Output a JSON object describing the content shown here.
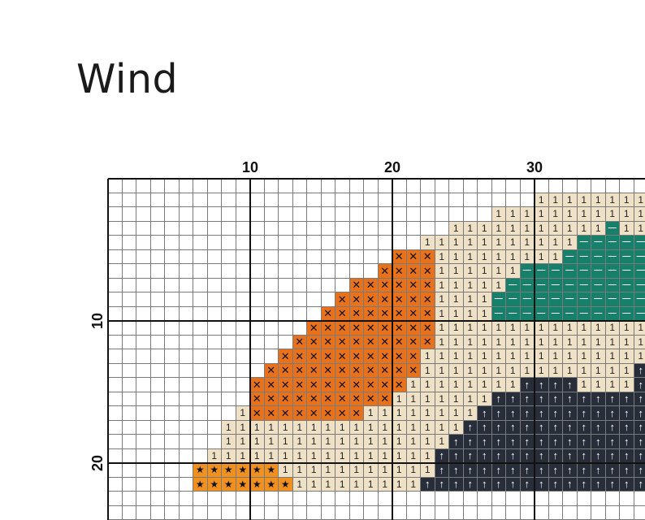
{
  "title": "Wind",
  "column_labels": [
    {
      "value": "10",
      "col": 10
    },
    {
      "value": "20",
      "col": 20
    },
    {
      "value": "30",
      "col": 30
    }
  ],
  "row_labels": [
    {
      "value": "10",
      "row": 10
    },
    {
      "value": "20",
      "row": 20
    }
  ],
  "symbols": {
    "T": {
      "glyph": "1",
      "bg": "#EFE1C6",
      "fg": "#222222",
      "name": "tan-1"
    },
    "O": {
      "glyph": "✕",
      "bg": "#E8711C",
      "fg": "#111111",
      "name": "orange-x"
    },
    "G": {
      "glyph": "—",
      "bg": "#16806B",
      "fg": "#FFFFFF",
      "name": "teal-dash"
    },
    "D": {
      "glyph": "↑",
      "bg": "#272E39",
      "fg": "#FFFFFF",
      "name": "dark-arrow"
    },
    "S": {
      "glyph": "★",
      "bg": "#F0901E",
      "fg": "#111111",
      "name": "orange-star"
    }
  },
  "pattern": [
    "......................................",
    "..............................TTTTTTTT",
    "...........................TTTTTTTTTTT",
    "........................TTTTTTTTTTTGTT",
    "......................TTTTTTTTTTTGGGGG",
    "....................OOOTTTTTTTTTGGGGGG",
    "...................OOOOTTTTTTGGGGGGGGG",
    ".................OOOOOOTTTTTGGGGGGGGGG",
    "................OOOOOOOTTTTGGGGGGGGGGG",
    "...............OOOOOOOOTTTTGGGGGGGGGGG",
    "..............OOOOOOOOOTTTTTTTTTTTTTTT",
    ".............OOOOOOOOOOTTTTTTTTTTTTTTT",
    "............OOOOOOOOOOTTTTTTTTTTTTTTTT",
    "...........OOOOOOOOOOOTTTTTTTTTTTTTTTD",
    "..........OOOOOOOOOOOTTTTTTTTDDDDTTTTD",
    "..........OOOOOOOOOOTTTTTTTDDDDDDDDDDD",
    ".........TOOOOOOOOTTTTTTTTDDDDDDDDDDDD",
    "........TTTTTTTTTTTTTTTTTDDDDDDDDDDDDD",
    "........TTTTTTTTTTTTTTTTDDDDDDDDDDDDDD",
    ".......TTTTTTTTTTTTTTTTDDDDDDDDDDDDDDD",
    "......SSSSSSTTTTTTTTTTTDDDDDDDDDDDDDDD",
    "......SSSSSSSTTTTTTTTTDDDDDDDDDDDDDDDD"
  ]
}
